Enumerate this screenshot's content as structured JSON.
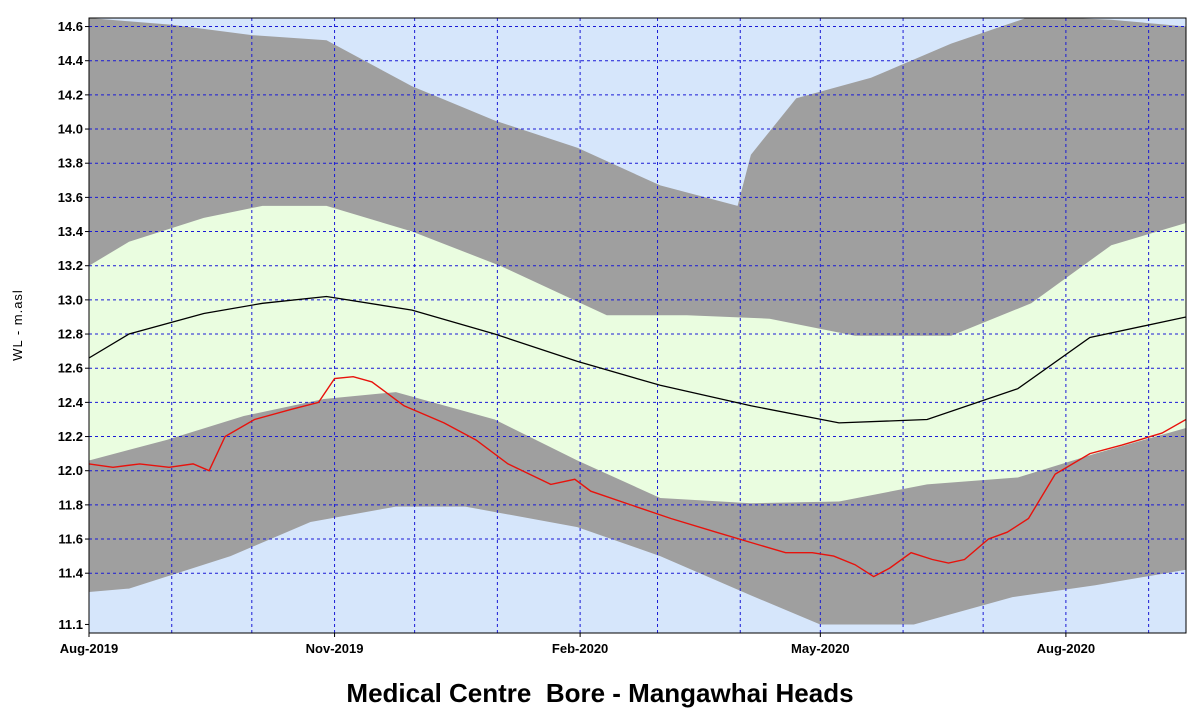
{
  "chart_data": {
    "type": "area",
    "title": "Medical Centre  Bore - Mangawhai Heads",
    "ylabel": "WL - m.asl",
    "xlabel": "",
    "ylim": [
      11.05,
      14.65
    ],
    "xlim": [
      "2019-08-01",
      "2020-09-15"
    ],
    "grid": true,
    "y_ticks": [
      11.1,
      11.4,
      11.6,
      11.8,
      12.0,
      12.2,
      12.4,
      12.6,
      12.8,
      13.0,
      13.2,
      13.4,
      13.6,
      13.8,
      14.0,
      14.2,
      14.4,
      14.6
    ],
    "x_ticks": [
      {
        "date": "2019-08-01",
        "label": "Aug-2019"
      },
      {
        "date": "2019-11-01",
        "label": "Nov-2019"
      },
      {
        "date": "2020-02-01",
        "label": "Feb-2020"
      },
      {
        "date": "2020-05-01",
        "label": "May-2020"
      },
      {
        "date": "2020-08-01",
        "label": "Aug-2020"
      }
    ],
    "colors": {
      "plot_background": "#d6e6fb",
      "grid": "#1a1ad6",
      "outer_band": "#9f9f9f",
      "inner_band": "#eafde0",
      "median": "#000000",
      "observed": "#e8120c"
    },
    "series": [
      {
        "role": "outer_band_upper",
        "x": [
          "2019-08-01",
          "2019-09-01",
          "2019-10-01",
          "2019-10-29",
          "2019-11-30",
          "2019-12-31",
          "2020-01-31",
          "2020-03-02",
          "2020-03-31",
          "2020-04-05",
          "2020-04-22",
          "2020-05-20",
          "2020-06-19",
          "2020-07-19",
          "2020-08-18",
          "2020-09-15"
        ],
        "y": [
          14.65,
          14.61,
          14.55,
          14.52,
          14.25,
          14.05,
          13.89,
          13.67,
          13.55,
          13.85,
          14.18,
          14.3,
          14.5,
          14.66,
          14.64,
          14.6
        ]
      },
      {
        "role": "inner_band_upper",
        "x": [
          "2019-08-01",
          "2019-08-16",
          "2019-09-13",
          "2019-10-05",
          "2019-10-29",
          "2019-11-30",
          "2020-01-02",
          "2020-02-11",
          "2020-03-12",
          "2020-04-12",
          "2020-05-14",
          "2020-06-19",
          "2020-07-19",
          "2020-08-18",
          "2020-09-15"
        ],
        "y": [
          13.2,
          13.34,
          13.48,
          13.55,
          13.55,
          13.4,
          13.2,
          12.91,
          12.91,
          12.89,
          12.79,
          12.79,
          12.98,
          13.32,
          13.45
        ]
      },
      {
        "role": "median",
        "x": [
          "2019-08-01",
          "2019-08-16",
          "2019-09-13",
          "2019-10-05",
          "2019-10-29",
          "2019-11-30",
          "2019-12-31",
          "2020-01-31",
          "2020-03-02",
          "2020-04-05",
          "2020-05-08",
          "2020-06-10",
          "2020-07-14",
          "2020-08-10",
          "2020-09-15"
        ],
        "y": [
          12.66,
          12.8,
          12.92,
          12.98,
          13.02,
          12.94,
          12.8,
          12.64,
          12.5,
          12.38,
          12.28,
          12.3,
          12.48,
          12.78,
          12.9
        ]
      },
      {
        "role": "inner_band_lower",
        "x": [
          "2019-08-01",
          "2019-08-30",
          "2019-09-28",
          "2019-10-28",
          "2019-11-24",
          "2019-12-31",
          "2020-01-31",
          "2020-03-02",
          "2020-04-05",
          "2020-05-08",
          "2020-06-10",
          "2020-07-14",
          "2020-08-12",
          "2020-09-15"
        ],
        "y": [
          12.06,
          12.18,
          12.32,
          12.42,
          12.46,
          12.3,
          12.06,
          11.84,
          11.81,
          11.82,
          11.92,
          11.96,
          12.1,
          12.25
        ]
      },
      {
        "role": "outer_band_lower",
        "x": [
          "2019-08-01",
          "2019-08-16",
          "2019-09-23",
          "2019-10-23",
          "2019-11-24",
          "2019-12-20",
          "2020-01-31",
          "2020-03-02",
          "2020-04-05",
          "2020-05-01",
          "2020-06-05",
          "2020-07-12",
          "2020-08-12",
          "2020-09-15"
        ],
        "y": [
          11.29,
          11.31,
          11.5,
          11.7,
          11.79,
          11.79,
          11.67,
          11.5,
          11.27,
          11.1,
          11.1,
          11.26,
          11.33,
          11.42
        ]
      },
      {
        "role": "observed",
        "x": [
          "2019-08-01",
          "2019-08-10",
          "2019-08-20",
          "2019-08-31",
          "2019-09-09",
          "2019-09-15",
          "2019-09-21",
          "2019-10-02",
          "2019-10-16",
          "2019-10-26",
          "2019-11-01",
          "2019-11-08",
          "2019-11-15",
          "2019-11-27",
          "2019-12-12",
          "2019-12-24",
          "2020-01-05",
          "2020-01-21",
          "2020-01-30",
          "2020-02-05",
          "2020-02-20",
          "2020-03-06",
          "2020-03-23",
          "2020-04-05",
          "2020-04-18",
          "2020-04-28",
          "2020-05-06",
          "2020-05-14",
          "2020-05-21",
          "2020-05-27",
          "2020-06-04",
          "2020-06-12",
          "2020-06-18",
          "2020-06-24",
          "2020-07-03",
          "2020-07-10",
          "2020-07-18",
          "2020-07-28",
          "2020-08-10",
          "2020-08-22",
          "2020-09-06",
          "2020-09-15"
        ],
        "y": [
          12.04,
          12.02,
          12.04,
          12.02,
          12.04,
          12.0,
          12.2,
          12.3,
          12.36,
          12.4,
          12.54,
          12.55,
          12.52,
          12.38,
          12.28,
          12.18,
          12.04,
          11.92,
          11.95,
          11.88,
          11.8,
          11.72,
          11.64,
          11.58,
          11.52,
          11.52,
          11.5,
          11.45,
          11.38,
          11.43,
          11.52,
          11.48,
          11.46,
          11.48,
          11.6,
          11.64,
          11.72,
          11.98,
          12.1,
          12.15,
          12.22,
          12.3
        ]
      }
    ]
  }
}
